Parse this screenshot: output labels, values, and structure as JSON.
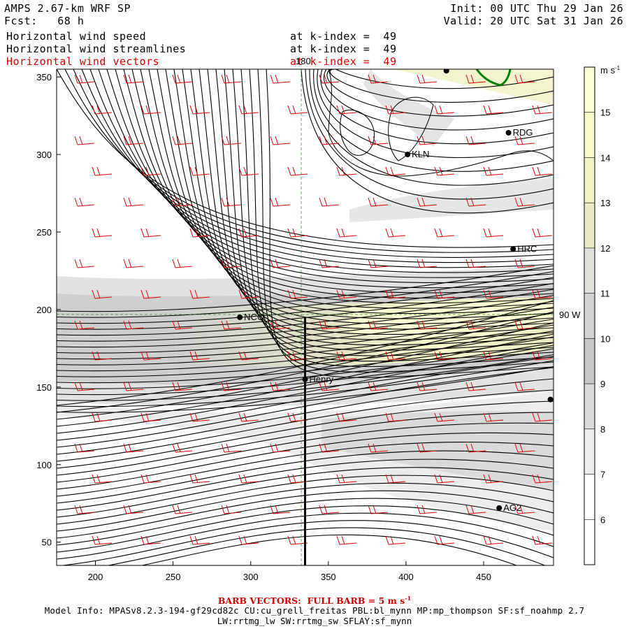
{
  "header": {
    "model": "AMPS 2.67-km WRF SP",
    "forecast": "Fcst:   68 h",
    "init": "Init: 00 UTC Thu 29 Jan 26",
    "valid": "Valid: 20 UTC Sat 31 Jan 26",
    "fields": [
      {
        "label": "Horizontal wind speed",
        "level": "at k-index =  49",
        "color": "#000000"
      },
      {
        "label": "Horizontal wind streamlines",
        "level": "at k-index =  49",
        "color": "#000000"
      },
      {
        "label": "Horizontal wind vectors",
        "level": "at k-index =  49",
        "color": "#e00000"
      }
    ]
  },
  "map": {
    "x_ticks": [
      "200",
      "250",
      "300",
      "350",
      "400",
      "450"
    ],
    "y_ticks": [
      "350",
      "300",
      "250",
      "200",
      "150",
      "100",
      "50"
    ],
    "x_range": [
      175,
      495
    ],
    "y_range": [
      35,
      355
    ],
    "meridian_label": "180",
    "parallel_label": "90 W",
    "stations": [
      {
        "id": "NCO",
        "x": 293,
        "y": 195
      },
      {
        "id": "Henry",
        "x": 335,
        "y": 155
      },
      {
        "id": "KLN",
        "x": 401,
        "y": 300
      },
      {
        "id": "RDG",
        "x": 466,
        "y": 314
      },
      {
        "id": "HRC",
        "x": 469,
        "y": 239
      },
      {
        "id": "AG2",
        "x": 460,
        "y": 72
      },
      {
        "id": "",
        "x": 493,
        "y": 142
      },
      {
        "id": "",
        "x": 426,
        "y": 354
      }
    ],
    "cross_section": {
      "x": 335,
      "y_from": 35,
      "y_to": 195
    },
    "colors": {
      "streamlines": "#000000",
      "vectors": "#e00000",
      "coast": "#008000",
      "grid": "#2a9a2a"
    }
  },
  "colorbar": {
    "unit": "m s",
    "unit_exp": "-1",
    "levels": [
      "15",
      "14",
      "13",
      "12",
      "11",
      "10",
      "9",
      "8",
      "7",
      "6"
    ],
    "colors": [
      "#fdfdd6",
      "#fafac8",
      "#f1f1c2",
      "#e9e9c4",
      "#e1e1dc",
      "#d2d2d2",
      "#c6c6c6",
      "#dadada",
      "#ececec",
      "#ffffff"
    ]
  },
  "footer": {
    "barb_note": "BARB VECTORS:  FULL BARB = 5 m s",
    "barb_exp": "-1",
    "model_info": "Model Info: MPASv8.2.3-194-gf29cd82c CU:cu_grell_freitas PBL:bl_mynn MP:mp_thompson SF:sf_noahmp 2.7",
    "model_info2": "LW:rrtmg_lw SW:rrtmg_sw SFLAY:sf_mynn"
  }
}
